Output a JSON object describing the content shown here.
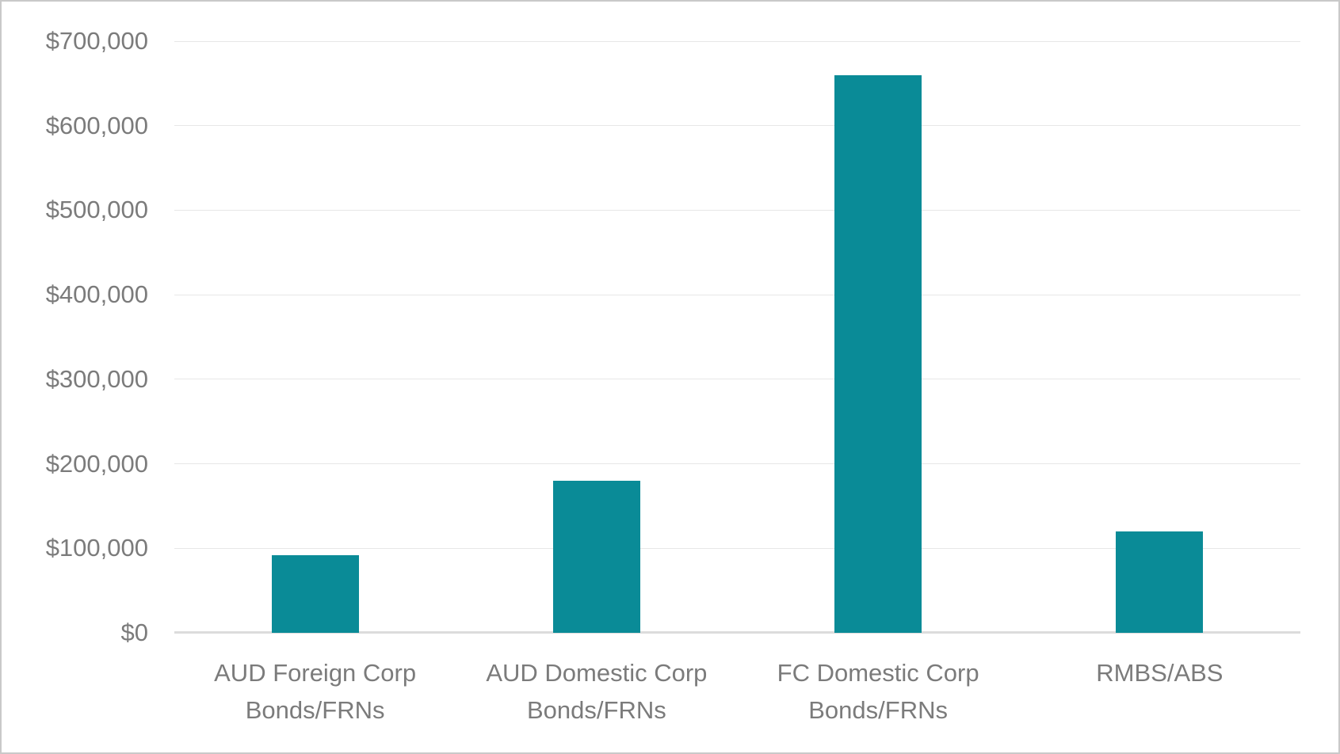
{
  "chart_data": {
    "type": "bar",
    "title": "",
    "xlabel": "",
    "ylabel": "",
    "categories": [
      "AUD Foreign Corp Bonds/FRNs",
      "AUD Domestic Corp Bonds/FRNs",
      "FC Domestic Corp Bonds/FRNs",
      "RMBS/ABS"
    ],
    "values": [
      92000,
      180000,
      660000,
      120000
    ],
    "ylim": [
      0,
      700000
    ],
    "ytick_interval": 100000,
    "yticks": [
      {
        "value": 0,
        "label": "$0"
      },
      {
        "value": 100000,
        "label": "$100,000"
      },
      {
        "value": 200000,
        "label": "$200,000"
      },
      {
        "value": 300000,
        "label": "$300,000"
      },
      {
        "value": 400000,
        "label": "$400,000"
      },
      {
        "value": 500000,
        "label": "$500,000"
      },
      {
        "value": 600000,
        "label": "$600,000"
      },
      {
        "value": 700000,
        "label": "$700,000"
      }
    ],
    "grid": true,
    "legend_position": "none",
    "colors": {
      "bar": "#0a8b97",
      "gridline": "#e7e7e7",
      "baseline": "#dcdcdc",
      "axis_label": "#7b7b7b",
      "frame_border": "#c9c9c9",
      "background": "#ffffff"
    }
  }
}
